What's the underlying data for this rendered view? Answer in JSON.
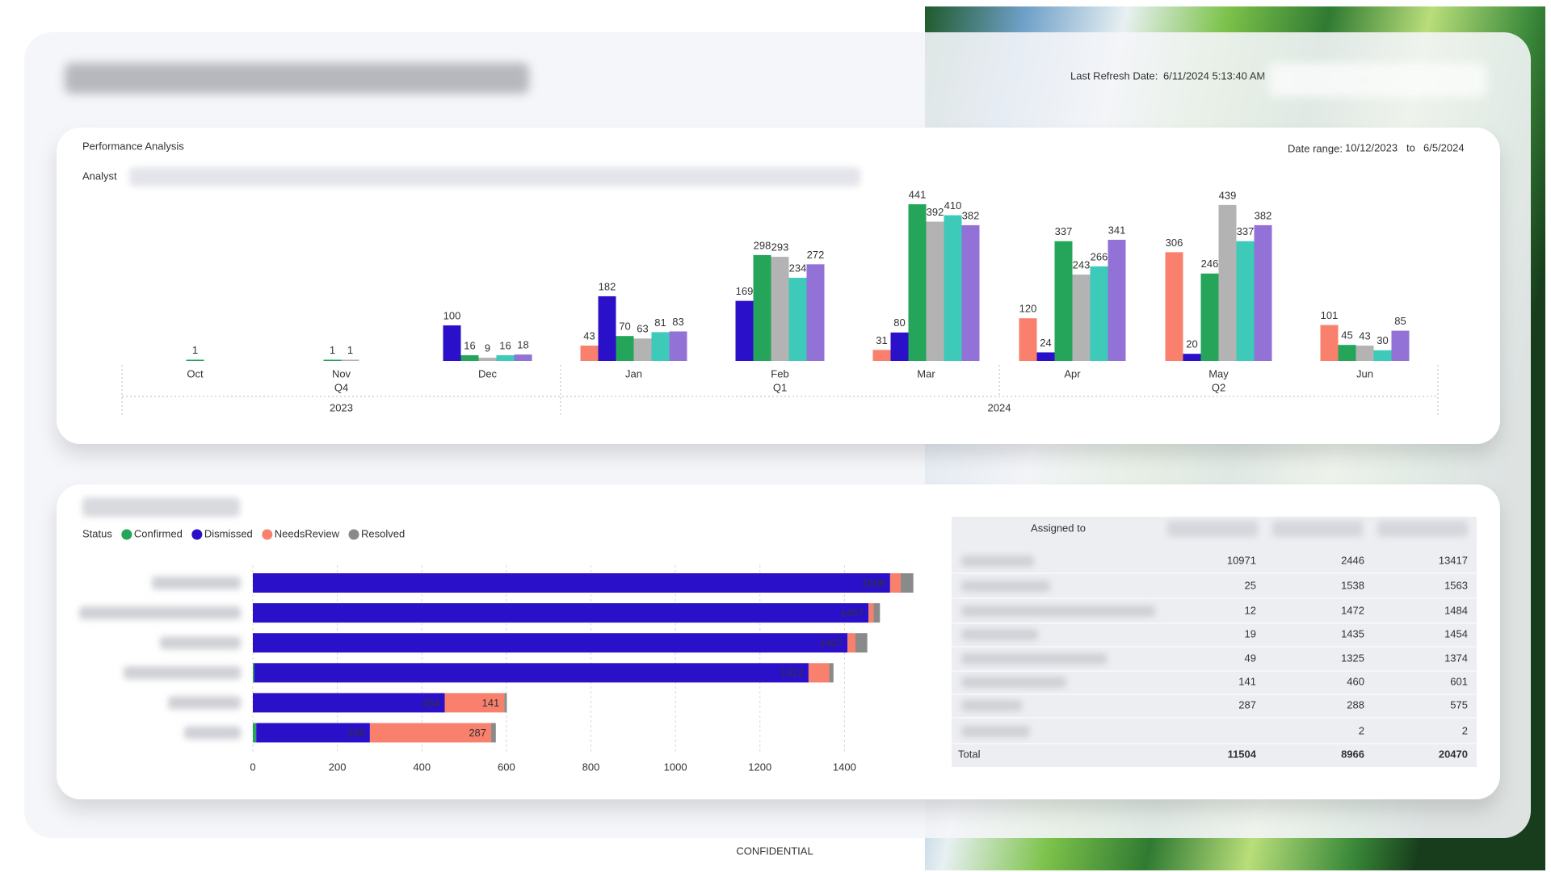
{
  "header": {
    "last_refresh_label": "Last Refresh Date:",
    "last_refresh_value": "6/11/2024 5:13:40 AM"
  },
  "chart_data": [
    {
      "type": "bar",
      "title": "Performance Analysis",
      "filter_label": "Analyst",
      "date_range": {
        "label": "Date range:",
        "start": "10/12/2023",
        "separator": "to",
        "end": "6/5/2024"
      },
      "categories": [
        "Oct",
        "Nov",
        "Dec",
        "Jan",
        "Feb",
        "Mar",
        "Apr",
        "May",
        "Jun"
      ],
      "quarters": [
        "Q4",
        "Q1",
        "Q2"
      ],
      "years": [
        "2023",
        "2024"
      ],
      "ylim": [
        0,
        450
      ],
      "series": [
        {
          "color": "#f8806c",
          "values": [
            null,
            null,
            null,
            43,
            null,
            31,
            120,
            306,
            101
          ]
        },
        {
          "color": "#2a10c9",
          "values": [
            null,
            null,
            100,
            182,
            169,
            80,
            24,
            20,
            null
          ]
        },
        {
          "color": "#24a55a",
          "values": [
            1,
            1,
            16,
            70,
            298,
            441,
            337,
            246,
            45
          ]
        },
        {
          "color": "#b3b3b3",
          "values": [
            null,
            1,
            9,
            63,
            293,
            392,
            243,
            439,
            43
          ]
        },
        {
          "color": "#3ecab9",
          "values": [
            null,
            null,
            16,
            81,
            234,
            410,
            266,
            337,
            30
          ]
        },
        {
          "color": "#9272d6",
          "values": [
            null,
            null,
            18,
            83,
            272,
            382,
            341,
            382,
            85
          ]
        }
      ]
    },
    {
      "type": "bar",
      "orientation": "horizontal",
      "stacked": true,
      "legend_title": "Status",
      "categories": [
        null,
        null,
        null,
        null,
        null,
        null
      ],
      "series": [
        {
          "name": "Confirmed",
          "color": "#24a55a",
          "values": [
            null,
            null,
            null,
            3,
            null,
            8
          ]
        },
        {
          "name": "Dismissed",
          "color": "#2a10c9",
          "values": [
            1508,
            1457,
            1407,
            1312,
            454,
            269
          ]
        },
        {
          "name": "NeedsReview",
          "color": "#f8806c",
          "values": [
            25,
            12,
            19,
            49,
            141,
            287
          ]
        },
        {
          "name": "Resolved",
          "color": "#8a8a8a",
          "values": [
            30,
            15,
            28,
            10,
            6,
            11
          ]
        }
      ],
      "xlim": [
        0,
        1600
      ],
      "xticks": [
        0,
        200,
        400,
        600,
        800,
        1000,
        1200,
        1400
      ],
      "grid": true
    }
  ],
  "table": {
    "header": "Assigned to",
    "rows": [
      [
        10971,
        2446,
        13417
      ],
      [
        25,
        1538,
        1563
      ],
      [
        12,
        1472,
        1484
      ],
      [
        19,
        1435,
        1454
      ],
      [
        49,
        1325,
        1374
      ],
      [
        141,
        460,
        601
      ],
      [
        287,
        288,
        575
      ],
      [
        null,
        2,
        2
      ]
    ],
    "total": {
      "label": "Total",
      "values": [
        11504,
        8966,
        20470
      ]
    }
  },
  "footer": "CONFIDENTIAL"
}
